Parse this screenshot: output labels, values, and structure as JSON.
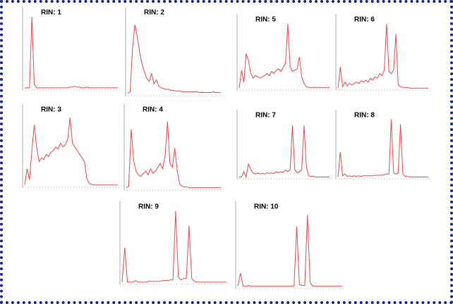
{
  "chart_data": [
    {
      "type": "line",
      "title": "RIN: 1",
      "color": "#e8474c",
      "ylim": [
        0,
        100
      ],
      "values": [
        3,
        3,
        3,
        100,
        8,
        3,
        3,
        3,
        3,
        3,
        3,
        3,
        3,
        3,
        3,
        3,
        3,
        3,
        3,
        4,
        4,
        5,
        4,
        4,
        3,
        3,
        4,
        3,
        3,
        3,
        3,
        3,
        3,
        3,
        3,
        3,
        3,
        3,
        3,
        3
      ]
    },
    {
      "type": "line",
      "title": "RIN: 2",
      "color": "#e8474c",
      "ylim": [
        0,
        100
      ],
      "values": [
        3,
        5,
        60,
        90,
        75,
        55,
        40,
        30,
        22,
        18,
        28,
        15,
        20,
        12,
        10,
        9,
        8,
        8,
        7,
        7,
        6,
        6,
        6,
        5,
        5,
        5,
        5,
        5,
        5,
        5,
        4,
        4,
        4,
        4,
        4,
        4,
        5,
        4,
        4,
        4
      ]
    },
    {
      "type": "line",
      "title": "RIN: 5",
      "color": "#e8474c",
      "ylim": [
        0,
        100
      ],
      "values": [
        3,
        30,
        12,
        55,
        45,
        25,
        18,
        22,
        20,
        18,
        20,
        22,
        25,
        22,
        28,
        25,
        30,
        32,
        28,
        35,
        40,
        100,
        35,
        28,
        30,
        32,
        50,
        20,
        10,
        5,
        4,
        4,
        4,
        4,
        4,
        4,
        4,
        4,
        4,
        4
      ]
    },
    {
      "type": "line",
      "title": "RIN: 6",
      "color": "#e8474c",
      "ylim": [
        0,
        100
      ],
      "values": [
        3,
        35,
        5,
        12,
        6,
        10,
        8,
        10,
        12,
        10,
        14,
        12,
        15,
        12,
        18,
        15,
        20,
        18,
        25,
        22,
        30,
        100,
        28,
        25,
        30,
        85,
        8,
        5,
        4,
        4,
        4,
        3,
        3,
        3,
        3,
        3,
        3,
        3,
        3,
        3
      ]
    },
    {
      "type": "line",
      "title": "RIN: 3",
      "color": "#e8474c",
      "ylim": [
        0,
        100
      ],
      "values": [
        3,
        25,
        10,
        50,
        85,
        55,
        35,
        40,
        38,
        45,
        42,
        48,
        50,
        55,
        52,
        60,
        55,
        58,
        65,
        95,
        60,
        55,
        50,
        45,
        40,
        35,
        12,
        5,
        4,
        3,
        3,
        3,
        3,
        3,
        3,
        3,
        3,
        3,
        3,
        3
      ]
    },
    {
      "type": "line",
      "title": "RIN: 4",
      "color": "#e8474c",
      "ylim": [
        0,
        100
      ],
      "values": [
        3,
        5,
        80,
        40,
        25,
        20,
        18,
        22,
        25,
        20,
        28,
        22,
        25,
        30,
        35,
        28,
        45,
        90,
        35,
        30,
        55,
        25,
        8,
        5,
        4,
        4,
        3,
        3,
        3,
        3,
        3,
        3,
        3,
        3,
        3,
        3,
        3,
        3,
        3,
        3
      ]
    },
    {
      "type": "line",
      "title": "RIN: 7",
      "color": "#e8474c",
      "ylim": [
        0,
        100
      ],
      "values": [
        3,
        3,
        12,
        3,
        25,
        15,
        10,
        8,
        10,
        8,
        9,
        8,
        10,
        9,
        10,
        9,
        12,
        10,
        12,
        11,
        15,
        12,
        15,
        90,
        15,
        10,
        12,
        15,
        90,
        20,
        5,
        4,
        4,
        3,
        3,
        3,
        3,
        3,
        3,
        3
      ]
    },
    {
      "type": "line",
      "title": "RIN: 8",
      "color": "#e8474c",
      "ylim": [
        0,
        100
      ],
      "values": [
        3,
        45,
        5,
        8,
        4,
        5,
        4,
        5,
        4,
        5,
        4,
        5,
        5,
        5,
        5,
        5,
        6,
        6,
        6,
        6,
        7,
        8,
        8,
        100,
        10,
        8,
        10,
        92,
        8,
        4,
        4,
        3,
        3,
        3,
        3,
        3,
        3,
        3,
        3,
        3
      ]
    },
    {
      "type": "line",
      "title": "RIN: 9",
      "color": "#e8474c",
      "ylim": [
        0,
        100
      ],
      "values": [
        3,
        50,
        3,
        3,
        3,
        5,
        3,
        3,
        3,
        3,
        4,
        4,
        4,
        4,
        4,
        5,
        5,
        5,
        6,
        6,
        100,
        10,
        6,
        8,
        8,
        80,
        8,
        4,
        3,
        3,
        3,
        3,
        3,
        3,
        3,
        3,
        3,
        3,
        3,
        3
      ]
    },
    {
      "type": "line",
      "title": "RIN: 10",
      "color": "#e8474c",
      "ylim": [
        0,
        100
      ],
      "values": [
        3,
        20,
        3,
        3,
        4,
        3,
        3,
        3,
        3,
        3,
        3,
        3,
        3,
        3,
        3,
        3,
        3,
        3,
        3,
        3,
        3,
        3,
        80,
        5,
        4,
        4,
        95,
        8,
        3,
        3,
        3,
        3,
        3,
        3,
        3,
        3,
        3,
        3,
        3,
        3
      ]
    }
  ]
}
